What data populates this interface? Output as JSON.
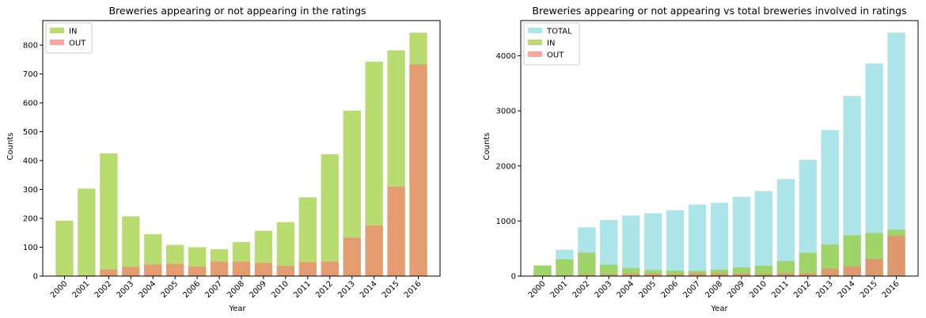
{
  "chart_data": [
    {
      "type": "bar",
      "title": "Breweries appearing or not appearing in the ratings",
      "xlabel": "Year",
      "ylabel": "Counts",
      "categories": [
        "2000",
        "2001",
        "2002",
        "2003",
        "2004",
        "2005",
        "2006",
        "2007",
        "2008",
        "2009",
        "2010",
        "2011",
        "2012",
        "2013",
        "2014",
        "2015",
        "2016"
      ],
      "series": [
        {
          "name": "IN",
          "color": "#9acd32",
          "values": [
            192,
            303,
            425,
            207,
            145,
            108,
            100,
            93,
            118,
            157,
            187,
            273,
            422,
            573,
            743,
            782,
            843
          ]
        },
        {
          "name": "OUT",
          "color": "#fa8072",
          "values": [
            1,
            3,
            23,
            32,
            40,
            42,
            33,
            50,
            50,
            45,
            35,
            48,
            50,
            133,
            175,
            310,
            733
          ]
        }
      ],
      "ylim": [
        0,
        885
      ],
      "yticks": [
        0,
        100,
        200,
        300,
        400,
        500,
        600,
        700,
        800
      ],
      "legend": "top-left",
      "overlay": true,
      "alpha": 0.7
    },
    {
      "type": "bar",
      "title": "Breweries appearing or not appearing vs total breweries involved in ratings",
      "xlabel": "Year",
      "ylabel": "Counts",
      "categories": [
        "2000",
        "2001",
        "2002",
        "2003",
        "2004",
        "2005",
        "2006",
        "2007",
        "2008",
        "2009",
        "2010",
        "2011",
        "2012",
        "2013",
        "2014",
        "2015",
        "2016"
      ],
      "series": [
        {
          "name": "TOTAL",
          "color": "#87d8df",
          "values": [
            193,
            480,
            885,
            1020,
            1100,
            1140,
            1195,
            1300,
            1330,
            1440,
            1545,
            1760,
            2110,
            2650,
            3270,
            3860,
            4420
          ]
        },
        {
          "name": "IN",
          "color": "#9acd32",
          "values": [
            192,
            303,
            425,
            207,
            145,
            108,
            100,
            93,
            118,
            157,
            187,
            273,
            422,
            573,
            743,
            782,
            843
          ]
        },
        {
          "name": "OUT",
          "color": "#fa8072",
          "values": [
            1,
            3,
            23,
            32,
            40,
            42,
            33,
            50,
            50,
            45,
            35,
            48,
            50,
            133,
            175,
            310,
            733
          ]
        }
      ],
      "ylim": [
        0,
        4640
      ],
      "yticks": [
        0,
        1000,
        2000,
        3000,
        4000
      ],
      "legend": "top-left",
      "overlay": true,
      "alpha": 0.7
    }
  ]
}
